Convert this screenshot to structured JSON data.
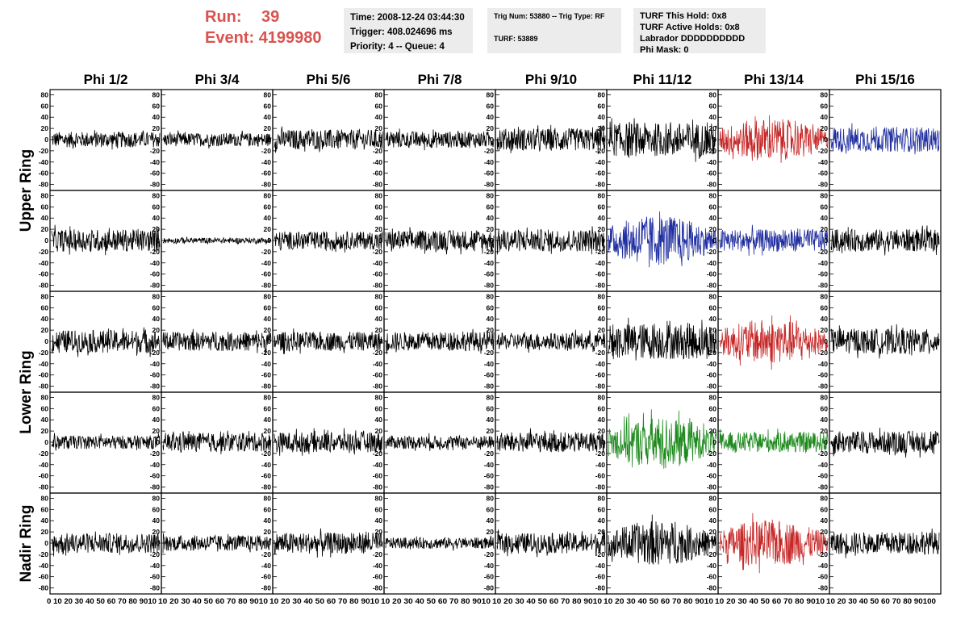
{
  "header": {
    "run_label": "Run:",
    "run_value": "39",
    "event_label": "Event:",
    "event_value": "4199980",
    "time_line": "Time: 2008-12-24 03:44:30",
    "trigger_line": "Trigger: 408.024696 ms",
    "priority_line": "Priority: 4 -- Queue: 4",
    "trig_line": "Trig Num: 53880 -- Trig Type: RF",
    "turf_line": "TURF: 53889",
    "turf_hold_line": "TURF This Hold: 0x8",
    "turf_active_line": "TURF Active Holds: 0x8",
    "labrador_line": "Labrador DDDDDDDDDD",
    "phi_mask_line": "Phi Mask: 0"
  },
  "colors": {
    "title_red": "#d9534f",
    "box_gray": "#ececec",
    "black": "#000000",
    "red": "#c62828",
    "blue": "#1f2ea0",
    "green": "#1e8a1e"
  },
  "chart_data": {
    "type": "line",
    "columns": [
      "Phi 1/2",
      "Phi 3/4",
      "Phi 5/6",
      "Phi 7/8",
      "Phi 9/10",
      "Phi 11/12",
      "Phi 13/14",
      "Phi 15/16"
    ],
    "row_groups": [
      {
        "label": "Upper Ring",
        "rows": 2
      },
      {
        "label": "Lower Ring",
        "rows": 2
      },
      {
        "label": "Nadir Ring",
        "rows": 1
      }
    ],
    "ylim": [
      -85,
      85
    ],
    "xlim": [
      0,
      100
    ],
    "y_ticks": [
      80,
      60,
      40,
      20,
      0,
      -20,
      -40,
      -60,
      -80
    ],
    "x_tick_labels": [
      "0",
      "10",
      "20",
      "30",
      "40",
      "50",
      "60",
      "70",
      "80",
      "90",
      "100"
    ],
    "x_axis_strings": [
      "0 10 20 30 40 50 60 70 80 9010",
      "10 20 30 40 50 60 70 80 9010",
      "10 20 30 40 50 60 70 80 9010",
      "10 20 30 40 50 60 70 80 9010",
      "10 20 30 40 50 60 70 80 9010",
      "10 20 30 40 50 60 70 80 9010",
      "10 20 30 40 50 60 70 80 9010",
      "10 20 30 40 50 60 70 80 90100"
    ],
    "panels": [
      [
        {
          "color": "black",
          "amp": 14
        },
        {
          "color": "black",
          "amp": 12
        },
        {
          "color": "black",
          "amp": 18
        },
        {
          "color": "black",
          "amp": 15
        },
        {
          "color": "black",
          "amp": 20
        },
        {
          "color": "black",
          "amp": 30
        },
        {
          "color": "red",
          "amp": 38
        },
        {
          "color": "blue",
          "amp": 22
        }
      ],
      [
        {
          "color": "black",
          "amp": 20
        },
        {
          "color": "black",
          "amp": 5
        },
        {
          "color": "black",
          "amp": 16
        },
        {
          "color": "black",
          "amp": 18
        },
        {
          "color": "black",
          "amp": 20
        },
        {
          "color": "blue",
          "amp": 45
        },
        {
          "color": "blue",
          "amp": 20
        },
        {
          "color": "black",
          "amp": 20
        }
      ],
      [
        {
          "color": "black",
          "amp": 20
        },
        {
          "color": "black",
          "amp": 17
        },
        {
          "color": "black",
          "amp": 17
        },
        {
          "color": "black",
          "amp": 17
        },
        {
          "color": "black",
          "amp": 15
        },
        {
          "color": "black",
          "amp": 32
        },
        {
          "color": "red",
          "amp": 40
        },
        {
          "color": "black",
          "amp": 22
        }
      ],
      [
        {
          "color": "black",
          "amp": 12
        },
        {
          "color": "black",
          "amp": 17
        },
        {
          "color": "black",
          "amp": 18
        },
        {
          "color": "black",
          "amp": 12
        },
        {
          "color": "black",
          "amp": 18
        },
        {
          "color": "green",
          "amp": 45
        },
        {
          "color": "green",
          "amp": 18
        },
        {
          "color": "black",
          "amp": 20
        }
      ],
      [
        {
          "color": "black",
          "amp": 18
        },
        {
          "color": "black",
          "amp": 14
        },
        {
          "color": "black",
          "amp": 19
        },
        {
          "color": "black",
          "amp": 10
        },
        {
          "color": "black",
          "amp": 18
        },
        {
          "color": "black",
          "amp": 40
        },
        {
          "color": "red",
          "amp": 42
        },
        {
          "color": "black",
          "amp": 20
        }
      ]
    ]
  }
}
